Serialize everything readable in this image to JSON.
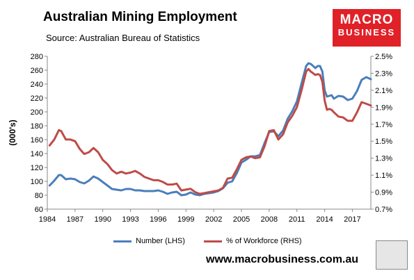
{
  "header": {
    "title": "Australian Mining Employment",
    "subtitle": "Source: Australian Bureau of Statistics",
    "logo_line1": "MACRO",
    "logo_line2": "BUSINESS",
    "footer_url": "www.macrobusiness.com.au"
  },
  "colors": {
    "number_series": "#4a7ebb",
    "pct_series": "#be4b48",
    "logo_bg": "#e02127"
  },
  "chart_data": {
    "type": "line",
    "title": "Australian Mining Employment",
    "subtitle": "Source: Australian Bureau of Statistics",
    "ylabel": "(000's)",
    "ylabel_right": "",
    "x_ticks": [
      "1984",
      "1987",
      "1990",
      "1993",
      "1996",
      "1999",
      "2002",
      "2005",
      "2008",
      "2011",
      "2014",
      "2017"
    ],
    "y_ticks": [
      "60",
      "80",
      "100",
      "120",
      "140",
      "160",
      "180",
      "200",
      "220",
      "240",
      "260",
      "280"
    ],
    "y2_ticks": [
      "0.7%",
      "0.9%",
      "1.1%",
      "1.3%",
      "1.5%",
      "1.7%",
      "1.9%",
      "2.1%",
      "2.3%",
      "2.5%"
    ],
    "xlim": [
      1984,
      2019
    ],
    "ylim": [
      60,
      280
    ],
    "y2lim": [
      0.7,
      2.5
    ],
    "grid": false,
    "legend": "bottom",
    "series": [
      {
        "name": "Number (LHS)",
        "axis": "left",
        "x": [
          1984.25,
          1984.75,
          1985.25,
          1985.5,
          1986,
          1986.5,
          1987,
          1987.5,
          1988,
          1988.5,
          1989,
          1989.5,
          1990,
          1990.5,
          1991,
          1991.5,
          1992,
          1992.5,
          1993,
          1993.5,
          1994,
          1994.5,
          1995,
          1995.5,
          1996,
          1996.5,
          1997,
          1997.5,
          1998,
          1998.5,
          1999,
          1999.5,
          2000,
          2000.5,
          2001,
          2001.5,
          2002,
          2002.5,
          2003,
          2003.5,
          2004,
          2004.5,
          2005,
          2005.5,
          2006,
          2006.5,
          2007,
          2007.5,
          2008,
          2008.5,
          2009,
          2009.5,
          2010,
          2010.5,
          2011,
          2011.5,
          2012,
          2012.25,
          2012.5,
          2012.75,
          2013,
          2013.25,
          2013.5,
          2013.75,
          2014,
          2014.25,
          2014.5,
          2014.75,
          2015,
          2015.5,
          2016,
          2016.5,
          2017,
          2017.5,
          2018,
          2018.5,
          2019
        ],
        "values": [
          94,
          101,
          109,
          109,
          103,
          104,
          103,
          99,
          97,
          101,
          107,
          104,
          99,
          94,
          89,
          88,
          87,
          89,
          89,
          87,
          87,
          86,
          86,
          86,
          87,
          85,
          82,
          84,
          85,
          80,
          81,
          84,
          81,
          80,
          82,
          83,
          84,
          86,
          90,
          98,
          100,
          112,
          127,
          131,
          136,
          136,
          138,
          155,
          171,
          172,
          165,
          173,
          190,
          201,
          215,
          241,
          266,
          270,
          269,
          266,
          263,
          266,
          266,
          258,
          231,
          222,
          223,
          224,
          219,
          223,
          222,
          217,
          219,
          230,
          246,
          250,
          247
        ]
      },
      {
        "name": "% of Workforce (RHS)",
        "axis": "right",
        "x": [
          1984.25,
          1984.75,
          1985.25,
          1985.5,
          1986,
          1986.5,
          1987,
          1987.5,
          1988,
          1988.5,
          1989,
          1989.5,
          1990,
          1990.5,
          1991,
          1991.5,
          1992,
          1992.5,
          1993,
          1993.5,
          1994,
          1994.5,
          1995,
          1995.5,
          1996,
          1996.5,
          1997,
          1997.5,
          1998,
          1998.5,
          1999,
          1999.5,
          2000,
          2000.5,
          2001,
          2001.5,
          2002,
          2002.5,
          2003,
          2003.5,
          2004,
          2004.5,
          2005,
          2005.5,
          2006,
          2006.5,
          2007,
          2007.5,
          2008,
          2008.5,
          2009,
          2009.5,
          2010,
          2010.5,
          2011,
          2011.5,
          2012,
          2012.25,
          2012.5,
          2012.75,
          2013,
          2013.25,
          2013.5,
          2013.75,
          2014,
          2014.25,
          2014.5,
          2014.75,
          2015,
          2015.5,
          2016,
          2016.5,
          2017,
          2017.5,
          2018,
          2018.5,
          2019
        ],
        "values": [
          1.45,
          1.52,
          1.63,
          1.62,
          1.52,
          1.52,
          1.5,
          1.41,
          1.35,
          1.37,
          1.42,
          1.37,
          1.28,
          1.23,
          1.16,
          1.12,
          1.14,
          1.12,
          1.13,
          1.15,
          1.12,
          1.08,
          1.06,
          1.04,
          1.04,
          1.02,
          0.99,
          0.99,
          1.0,
          0.92,
          0.93,
          0.94,
          0.9,
          0.88,
          0.89,
          0.9,
          0.91,
          0.92,
          0.95,
          1.06,
          1.07,
          1.17,
          1.28,
          1.31,
          1.32,
          1.3,
          1.31,
          1.44,
          1.62,
          1.63,
          1.52,
          1.58,
          1.72,
          1.8,
          1.9,
          2.1,
          2.32,
          2.35,
          2.32,
          2.3,
          2.28,
          2.29,
          2.28,
          2.2,
          1.98,
          1.87,
          1.88,
          1.87,
          1.84,
          1.79,
          1.78,
          1.74,
          1.74,
          1.84,
          1.96,
          1.94,
          1.92
        ]
      }
    ]
  }
}
